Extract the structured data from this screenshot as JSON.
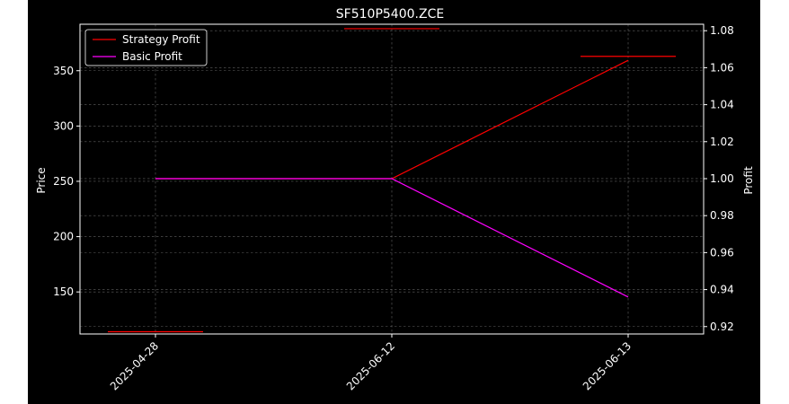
{
  "chart_data": {
    "type": "line",
    "title": "SF510P5400.ZCE",
    "x": [
      "2025-04-28",
      "2025-06-12",
      "2025-06-13"
    ],
    "left_axis": {
      "label": "Price",
      "ylim": [
        112,
        392
      ],
      "ticks": [
        150,
        200,
        250,
        300,
        350
      ]
    },
    "right_axis": {
      "label": "Profit",
      "ylim": [
        0.916,
        1.0835
      ],
      "ticks": [
        0.92,
        0.94,
        0.96,
        0.98,
        1.0,
        1.02,
        1.04,
        1.06,
        1.08
      ],
      "tick_labels": [
        "0.92",
        "0.94",
        "0.96",
        "0.98",
        "1.00",
        "1.02",
        "1.04",
        "1.06",
        "1.08"
      ]
    },
    "price_markers": [
      {
        "x": "2025-04-28",
        "value": 114
      },
      {
        "x": "2025-06-12",
        "value": 388
      },
      {
        "x": "2025-06-13",
        "value": 363
      }
    ],
    "series": [
      {
        "name": "Strategy Profit",
        "color": "#ff0000",
        "axis": "right",
        "values": [
          1.0,
          1.0,
          1.064
        ]
      },
      {
        "name": "Basic Profit",
        "color": "#ff00ff",
        "axis": "right",
        "values": [
          1.0,
          1.0,
          0.936
        ]
      }
    ],
    "marker_color": "#ff0000",
    "grid": true,
    "legend": "top-left"
  }
}
